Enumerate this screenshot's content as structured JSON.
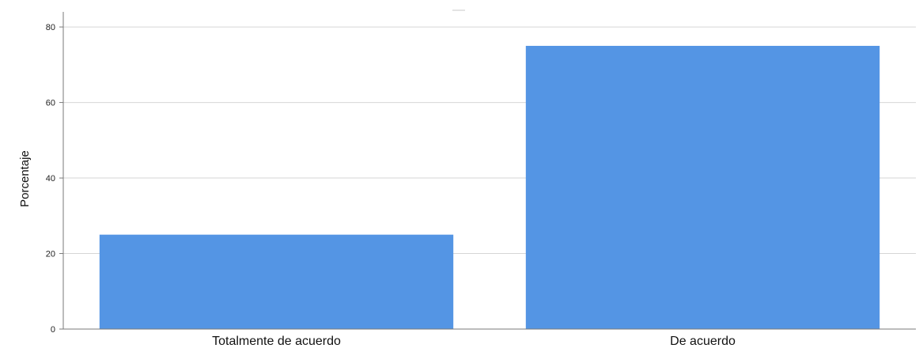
{
  "chart_data": {
    "type": "bar",
    "categories": [
      "Totalmente de acuerdo",
      "De acuerdo"
    ],
    "values": [
      25,
      75
    ],
    "title": "",
    "xlabel": "",
    "ylabel": "Porcentaje",
    "ylim": [
      0,
      84
    ],
    "yticks": [
      0,
      20,
      40,
      60,
      80
    ],
    "grid": true,
    "legend": "none",
    "colors": {
      "bar": "#5495e4",
      "grid": "#d6d6d6",
      "axis": "#7a7a7a",
      "text": "#222222"
    }
  }
}
